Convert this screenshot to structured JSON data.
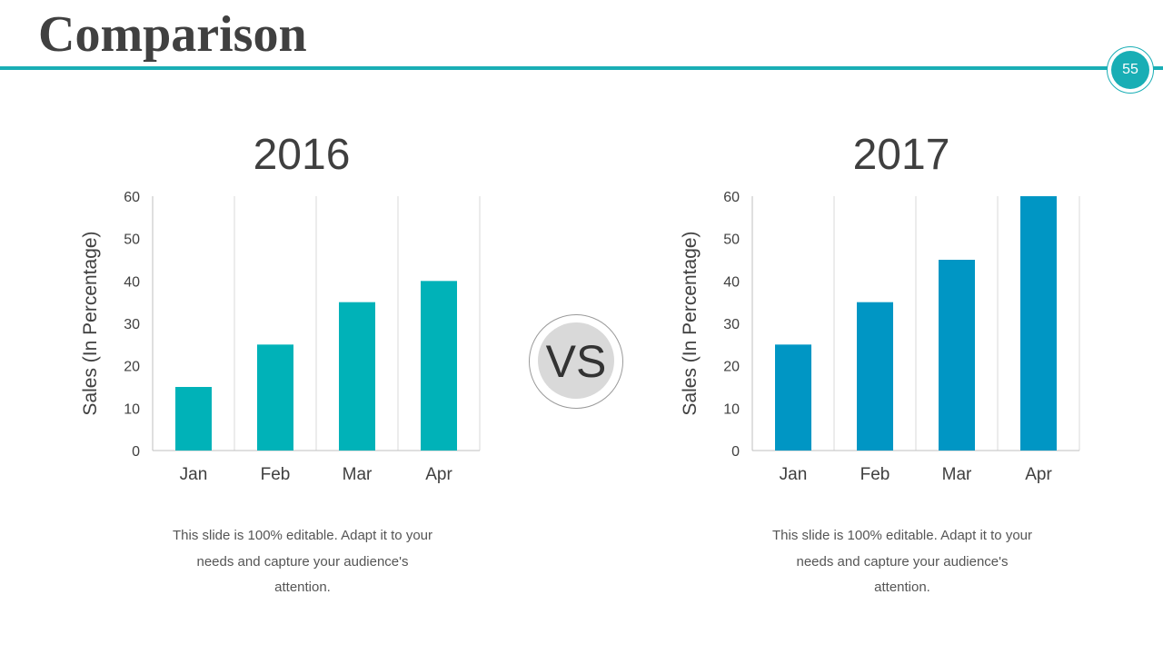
{
  "slide": {
    "title": "Comparison",
    "page_number": "55",
    "vs_label": "VS",
    "colors": {
      "accent": "#19aeb5",
      "bar_2016": "#00b2b8",
      "bar_2017": "#0096c4"
    }
  },
  "left": {
    "year": "2016",
    "description": "This slide is 100% editable. Adapt it to your needs and capture your audience's attention."
  },
  "right": {
    "year": "2017",
    "description": "This slide is 100% editable. Adapt it to your needs and capture your audience's attention."
  },
  "chart_data": [
    {
      "type": "bar",
      "title": "2016",
      "categories": [
        "Jan",
        "Feb",
        "Mar",
        "Apr"
      ],
      "values": [
        15,
        25,
        35,
        40
      ],
      "xlabel": "",
      "ylabel": "Sales (In Percentage)",
      "ylim": [
        0,
        60
      ],
      "yticks": [
        0,
        10,
        20,
        30,
        40,
        50,
        60
      ],
      "grid": "vertical",
      "color": "#00b2b8"
    },
    {
      "type": "bar",
      "title": "2017",
      "categories": [
        "Jan",
        "Feb",
        "Mar",
        "Apr"
      ],
      "values": [
        25,
        35,
        45,
        60
      ],
      "xlabel": "",
      "ylabel": "Sales (In Percentage)",
      "ylim": [
        0,
        60
      ],
      "yticks": [
        0,
        10,
        20,
        30,
        40,
        50,
        60
      ],
      "grid": "vertical",
      "color": "#0096c4"
    }
  ]
}
